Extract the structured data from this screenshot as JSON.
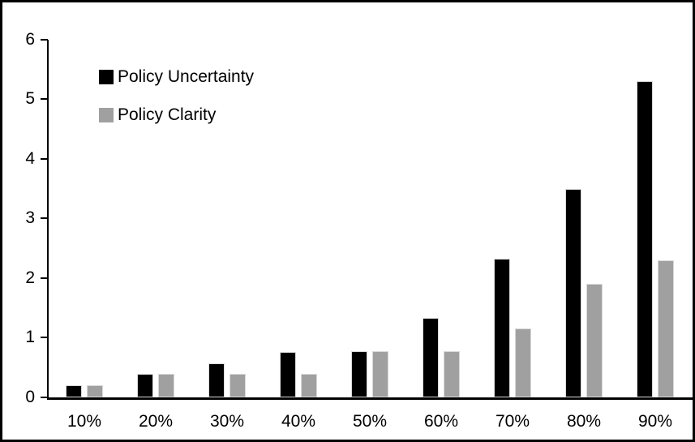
{
  "chart_data": {
    "type": "bar",
    "categories": [
      "10%",
      "20%",
      "30%",
      "40%",
      "50%",
      "60%",
      "70%",
      "80%",
      "90%"
    ],
    "series": [
      {
        "name": "Policy Uncertainty",
        "color": "#000000",
        "values": [
          0.2,
          0.4,
          0.57,
          0.76,
          0.77,
          1.33,
          2.32,
          3.5,
          5.3
        ]
      },
      {
        "name": "Policy Clarity",
        "color": "#a0a0a0",
        "values": [
          0.2,
          0.39,
          0.39,
          0.39,
          0.77,
          0.77,
          1.15,
          1.9,
          2.3
        ]
      }
    ],
    "ylim": [
      0,
      6
    ],
    "yticks": [
      0,
      1,
      2,
      3,
      4,
      5,
      6
    ],
    "grid": "off",
    "legend_position": "top-left",
    "axis_color": "#000000",
    "bar_outline_color": "#d9d9d9",
    "frame_border_color": "#000000",
    "background_color": "#ffffff"
  }
}
